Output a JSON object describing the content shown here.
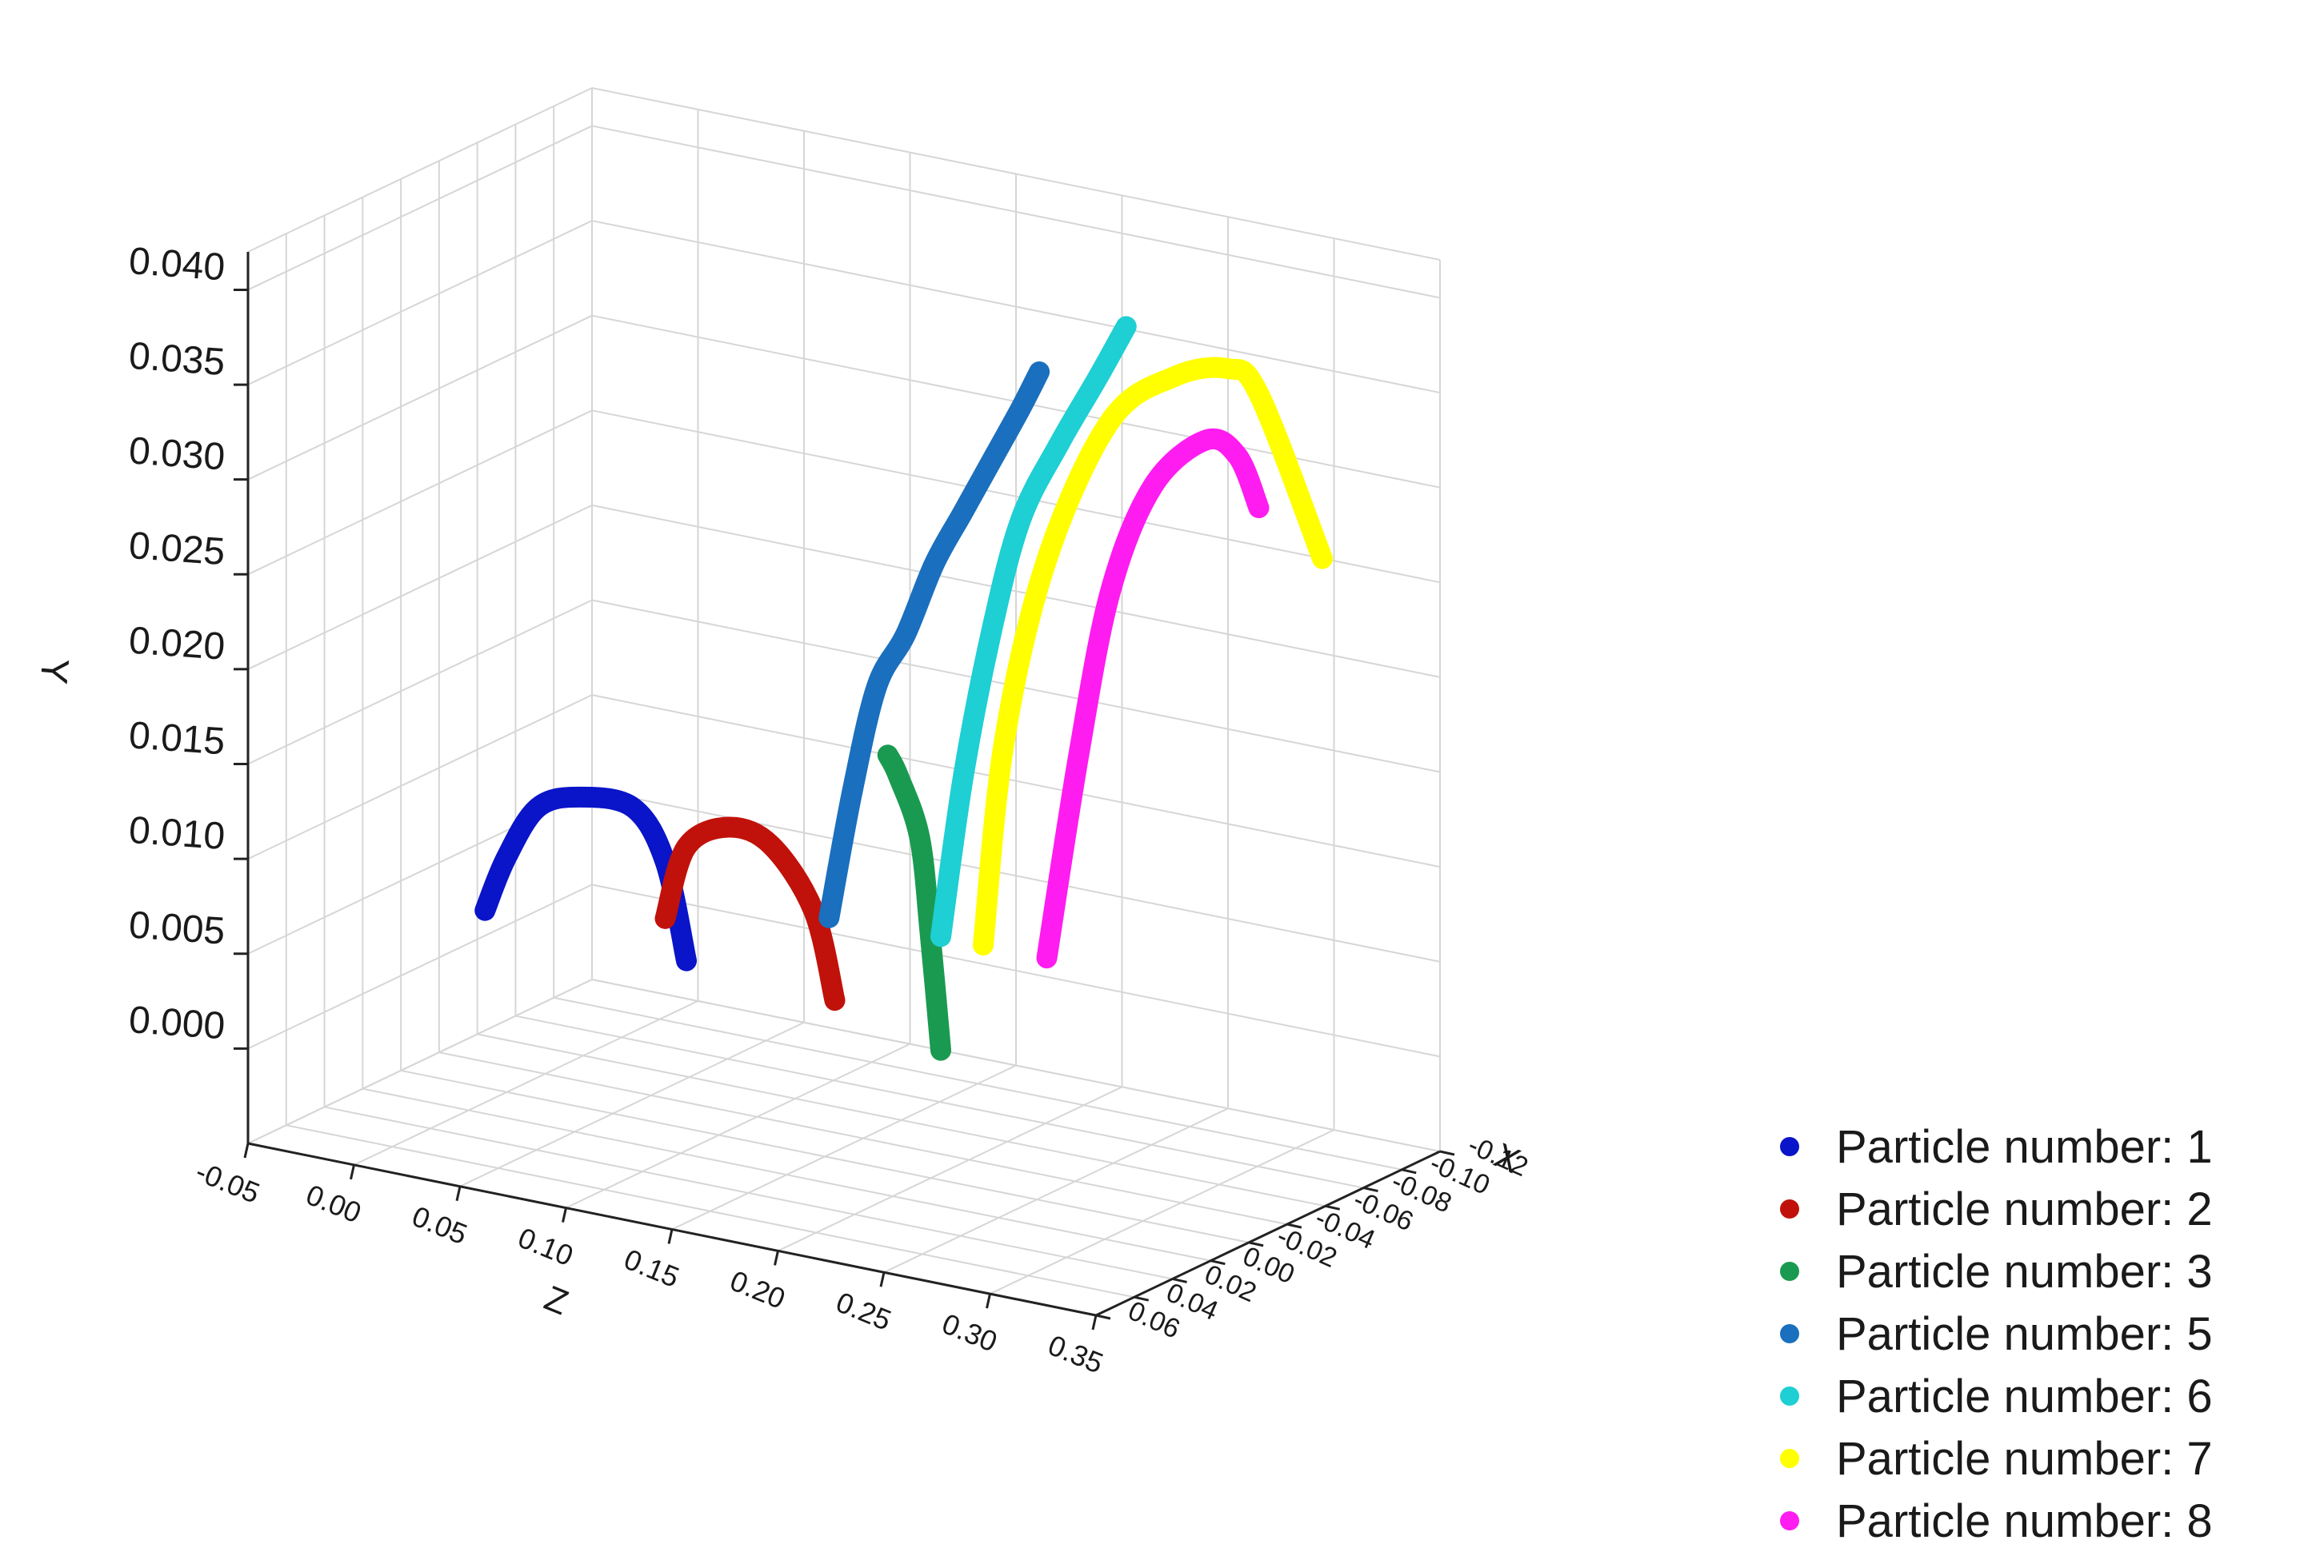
{
  "chart_data": {
    "type": "scatter",
    "subtype": "3d-trajectories",
    "axes": {
      "x": {
        "label": "X",
        "ticks": [
          "0.06",
          "0.04",
          "0.02",
          "0.00",
          "-0.02",
          "-0.04",
          "-0.06",
          "-0.08",
          "-0.10",
          "-0.12"
        ]
      },
      "y": {
        "label": "Y",
        "ticks": [
          "0.040",
          "0.035",
          "0.030",
          "0.025",
          "0.020",
          "0.015",
          "0.010",
          "0.005",
          "0.000"
        ]
      },
      "z": {
        "label": "Z",
        "ticks": [
          "-0.05",
          "0.00",
          "0.05",
          "0.10",
          "0.15",
          "0.20",
          "0.25",
          "0.30",
          "0.35"
        ]
      }
    },
    "grid": true,
    "legend_position": "bottom-right",
    "series": [
      {
        "name": "Particle number: 1",
        "color": "#0a14c8",
        "x": [
          -0.003,
          -0.003,
          -0.003,
          -0.003,
          -0.003,
          -0.003,
          -0.003
        ],
        "z": [
          0.005,
          0.015,
          0.03,
          0.05,
          0.075,
          0.09,
          0.1
        ],
        "y": [
          0.0055,
          0.0085,
          0.0115,
          0.0125,
          0.0125,
          0.01,
          0.005
        ]
      },
      {
        "name": "Particle number: 2",
        "color": "#c0120a",
        "x": [
          -0.003,
          -0.003,
          -0.003,
          -0.003,
          -0.003,
          -0.003
        ],
        "z": [
          0.09,
          0.1,
          0.12,
          0.14,
          0.16,
          0.17
        ],
        "y": [
          0.007,
          0.011,
          0.0125,
          0.012,
          0.009,
          0.0045
        ]
      },
      {
        "name": "Particle number: 3",
        "color": "#1a9a50",
        "x": [
          -0.003,
          -0.003,
          -0.003,
          -0.003,
          -0.003
        ],
        "z": [
          0.195,
          0.2,
          0.21,
          0.215,
          0.22
        ],
        "y": [
          0.018,
          0.017,
          0.014,
          0.009,
          0.003
        ]
      },
      {
        "name": "Particle number: 5",
        "color": "#1a6fbe",
        "x": [
          0.0,
          -0.012,
          -0.025,
          -0.04,
          -0.055,
          -0.07,
          -0.085,
          -0.1,
          -0.11
        ],
        "z": [
          0.17,
          0.17,
          0.17,
          0.17,
          0.17,
          0.17,
          0.17,
          0.17,
          0.17
        ],
        "y": [
          0.009,
          0.015,
          0.02,
          0.022,
          0.025,
          0.027,
          0.029,
          0.031,
          0.0325
        ]
      },
      {
        "name": "Particle number: 6",
        "color": "#1ecfd4",
        "x": [
          -0.003,
          -0.015,
          -0.03,
          -0.045,
          -0.065,
          -0.085,
          -0.1
        ],
        "z": [
          0.22,
          0.22,
          0.22,
          0.22,
          0.22,
          0.22,
          0.22
        ],
        "y": [
          0.009,
          0.017,
          0.024,
          0.029,
          0.032,
          0.0345,
          0.0365
        ]
      },
      {
        "name": "Particle number: 7",
        "color": "#ffff00",
        "x": [
          -0.003,
          -0.003,
          -0.003,
          -0.003,
          -0.003,
          -0.003,
          -0.003,
          -0.003
        ],
        "z": [
          0.24,
          0.25,
          0.27,
          0.3,
          0.33,
          0.355,
          0.37,
          0.4
        ],
        "y": [
          0.009,
          0.02,
          0.03,
          0.038,
          0.041,
          0.042,
          0.041,
          0.033
        ]
      },
      {
        "name": "Particle number: 8",
        "color": "#ff1cf0",
        "x": [
          -0.003,
          -0.003,
          -0.003,
          -0.003,
          -0.003,
          -0.003,
          -0.003
        ],
        "z": [
          0.27,
          0.285,
          0.3,
          0.32,
          0.345,
          0.36,
          0.37
        ],
        "y": [
          0.009,
          0.02,
          0.029,
          0.035,
          0.038,
          0.0375,
          0.035
        ]
      }
    ]
  }
}
